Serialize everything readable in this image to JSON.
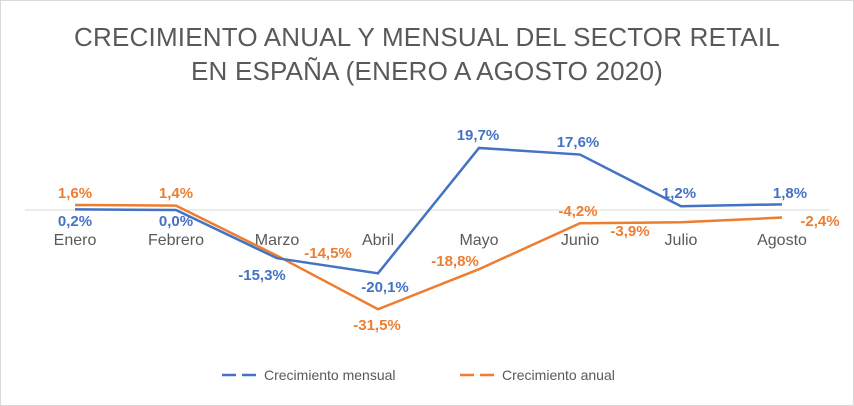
{
  "chart_data": {
    "type": "line",
    "title": [
      "CRECIMIENTO ANUAL Y MENSUAL DEL SECTOR RETAIL",
      "EN ESPAÑA (ENERO A AGOSTO 2020)"
    ],
    "categories": [
      "Enero",
      "Febrero",
      "Marzo",
      "Abril",
      "Mayo",
      "Junio",
      "Julio",
      "Agosto"
    ],
    "series": [
      {
        "name": "Crecimiento mensual",
        "color": "#4472c4",
        "values": [
          0.2,
          0.0,
          -15.3,
          -20.1,
          19.7,
          17.6,
          1.2,
          1.8
        ],
        "labels": [
          "0,2%",
          "0,0%",
          "-15,3%",
          "-20,1%",
          "19,7%",
          "17,6%",
          "1,2%",
          "1,8%"
        ]
      },
      {
        "name": "Crecimiento anual",
        "color": "#ed7d31",
        "values": [
          1.6,
          1.4,
          -14.5,
          -31.5,
          -18.8,
          -4.2,
          -3.9,
          -2.4
        ],
        "labels": [
          "1,6%",
          "1,4%",
          "-14,5%",
          "-31,5%",
          "-18,8%",
          "-4,2%",
          "-3,9%",
          "-2,4%"
        ]
      }
    ],
    "gridlines": "zero line only",
    "legend": "bottom"
  }
}
